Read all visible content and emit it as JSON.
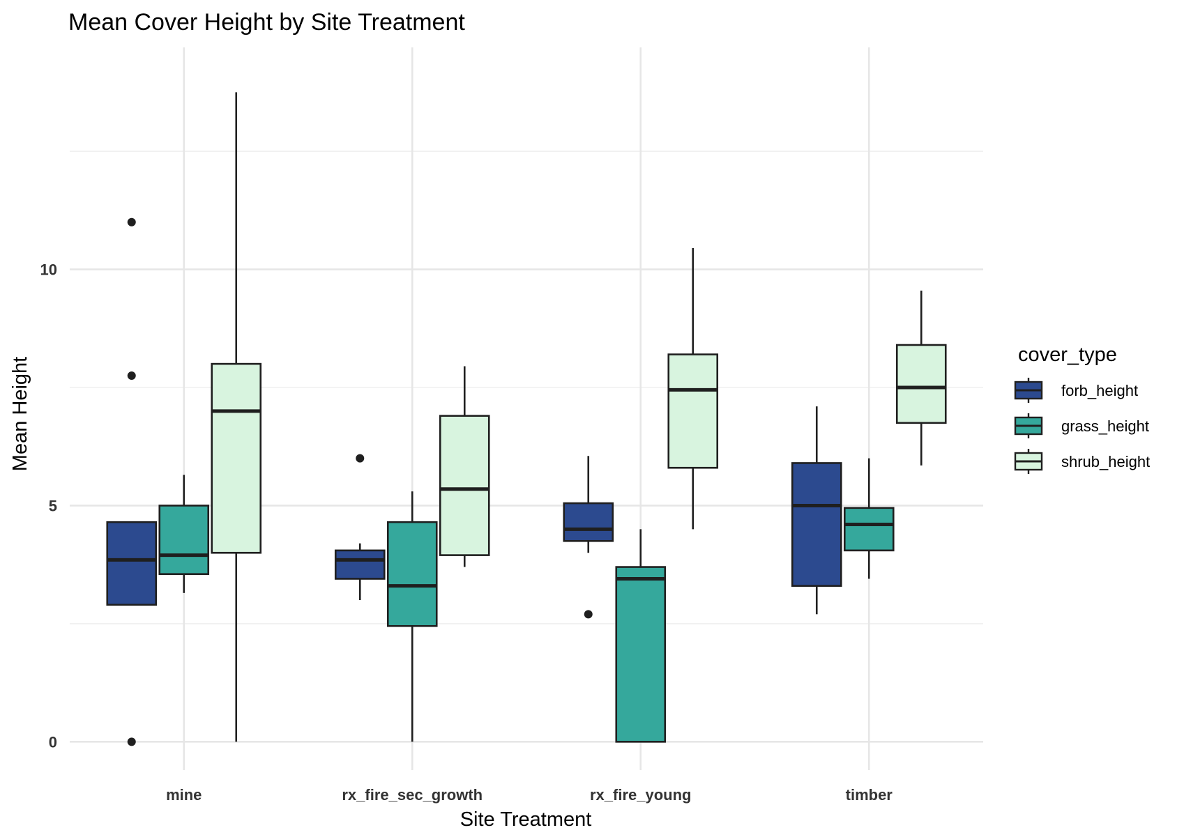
{
  "chart_data": {
    "type": "boxplot",
    "title": "Mean Cover Height by Site Treatment",
    "xlabel": "Site Treatment",
    "ylabel": "Mean Height",
    "categories": [
      "mine",
      "rx_fire_sec_growth",
      "rx_fire_young",
      "timber"
    ],
    "ylim": [
      -0.6,
      14.7
    ],
    "y_ticks": [
      0,
      5,
      10
    ],
    "y_minor_ticks": [
      2.5,
      7.5,
      12.5
    ],
    "grid": true,
    "legend": {
      "title": "cover_type",
      "position": "right"
    },
    "series": [
      {
        "name": "forb_height",
        "color": "#2c4a8f",
        "boxes": [
          {
            "whisker_low": 2.9,
            "q1": 2.9,
            "median": 3.85,
            "q3": 4.65,
            "whisker_high": 4.65,
            "outliers": [
              11,
              7.75,
              0
            ]
          },
          {
            "whisker_low": 3.0,
            "q1": 3.45,
            "median": 3.85,
            "q3": 4.05,
            "whisker_high": 4.2,
            "outliers": [
              6
            ]
          },
          {
            "whisker_low": 4.0,
            "q1": 4.25,
            "median": 4.5,
            "q3": 5.05,
            "whisker_high": 6.05,
            "outliers": [
              2.7
            ]
          },
          {
            "whisker_low": 2.7,
            "q1": 3.3,
            "median": 5.0,
            "q3": 5.9,
            "whisker_high": 7.1,
            "outliers": []
          }
        ]
      },
      {
        "name": "grass_height",
        "color": "#35a89c",
        "boxes": [
          {
            "whisker_low": 3.15,
            "q1": 3.55,
            "median": 3.95,
            "q3": 5.0,
            "whisker_high": 5.65,
            "outliers": []
          },
          {
            "whisker_low": 0,
            "q1": 2.45,
            "median": 3.3,
            "q3": 4.65,
            "whisker_high": 5.3,
            "outliers": []
          },
          {
            "whisker_low": 0,
            "q1": 0,
            "median": 3.45,
            "q3": 3.7,
            "whisker_high": 4.5,
            "outliers": []
          },
          {
            "whisker_low": 3.45,
            "q1": 4.05,
            "median": 4.6,
            "q3": 4.95,
            "whisker_high": 6.0,
            "outliers": []
          }
        ]
      },
      {
        "name": "shrub_height",
        "color": "#d8f4df",
        "boxes": [
          {
            "whisker_low": 0,
            "q1": 4.0,
            "median": 7.0,
            "q3": 8.0,
            "whisker_high": 13.75,
            "outliers": []
          },
          {
            "whisker_low": 3.7,
            "q1": 3.95,
            "median": 5.35,
            "q3": 6.9,
            "whisker_high": 7.95,
            "outliers": []
          },
          {
            "whisker_low": 4.5,
            "q1": 5.8,
            "median": 7.45,
            "q3": 8.2,
            "whisker_high": 10.45,
            "outliers": []
          },
          {
            "whisker_low": 5.85,
            "q1": 6.75,
            "median": 7.5,
            "q3": 8.4,
            "whisker_high": 9.55,
            "outliers": []
          }
        ]
      }
    ]
  }
}
